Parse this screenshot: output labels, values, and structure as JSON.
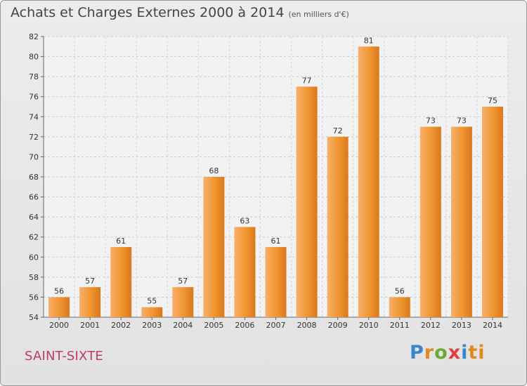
{
  "header": {
    "title": "Achats et Charges Externes 2000 à 2014",
    "subtitle": "(en milliers d'€)"
  },
  "footer": {
    "commune": "SAINT-SIXTE",
    "logo_letters": [
      "P",
      "r",
      "o",
      "x",
      "i",
      "ti"
    ]
  },
  "colors": {
    "bar": "#f0912c",
    "bar_light": "#f5a860",
    "bar_dark": "#d06f1a",
    "commune": "#c0396b"
  },
  "chart_data": {
    "type": "bar",
    "title": "Achats et Charges Externes 2000 à 2014",
    "subtitle": "(en milliers d'€)",
    "categories": [
      "2000",
      "2001",
      "2002",
      "2003",
      "2004",
      "2005",
      "2006",
      "2007",
      "2008",
      "2009",
      "2010",
      "2011",
      "2012",
      "2013",
      "2014"
    ],
    "values": [
      56,
      57,
      61,
      55,
      57,
      68,
      63,
      61,
      77,
      72,
      81,
      56,
      73,
      73,
      75
    ],
    "ylim": [
      54,
      82
    ],
    "yticks": [
      54,
      56,
      58,
      60,
      62,
      64,
      66,
      68,
      70,
      72,
      74,
      76,
      78,
      80,
      82
    ],
    "grid": true,
    "legend": "none"
  }
}
